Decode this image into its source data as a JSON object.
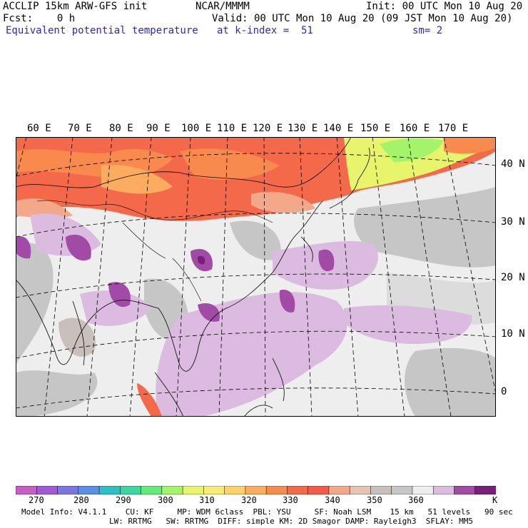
{
  "header": {
    "model": "ACCLIP 15km ARW-GFS init",
    "org": "NCAR/MMMM",
    "init": "Init: 00 UTC Mon 10 Aug 20",
    "fcst": "Fcst:    0 h",
    "valid": "Valid: 00 UTC Mon 10 Aug 20 (09 JST Mon 10 Aug 20)",
    "field": "Equivalent potential temperature",
    "level": "at k-index =  51",
    "smooth": "sm= 2"
  },
  "map": {
    "lon_labels": [
      "60 E",
      "70 E",
      "80 E",
      "90 E",
      "100 E",
      "110 E",
      "120 E",
      "130 E",
      "140 E",
      "150 E",
      "160 E",
      "170 E"
    ],
    "lat_labels": [
      "40 N",
      "30 N",
      "20 N",
      "10 N",
      "0"
    ]
  },
  "colorbar": {
    "colors": [
      "#c75ec7",
      "#a05ad8",
      "#7a78e0",
      "#5b8fe6",
      "#2fc0c4",
      "#3cd6a0",
      "#63ea7a",
      "#a4f46a",
      "#e6f56c",
      "#f9ec76",
      "#fdd26b",
      "#fbac5e",
      "#f98a4e",
      "#f4694a",
      "#f55a4a",
      "#f4a88a",
      "#e6c4b0",
      "#c8c0bc",
      "#c6c6c6",
      "#eeeeee",
      "#dbbce0",
      "#a14ba6",
      "#7a1e7c"
    ],
    "labels": [
      "270",
      "280",
      "290",
      "300",
      "310",
      "320",
      "330",
      "340",
      "350",
      "360",
      "K"
    ]
  },
  "model_info": {
    "line1": "Model Info: V4.1.1    CU: KF     MP: WDM 6class  PBL: YSU     SF: Noah LSM    15 km   51 levels   90 sec",
    "line2": "LW: RRTMG   SW: RRTMG  DIFF: simple KM: 2D Smagor DAMP: Rayleigh3  SFLAY: MM5"
  }
}
